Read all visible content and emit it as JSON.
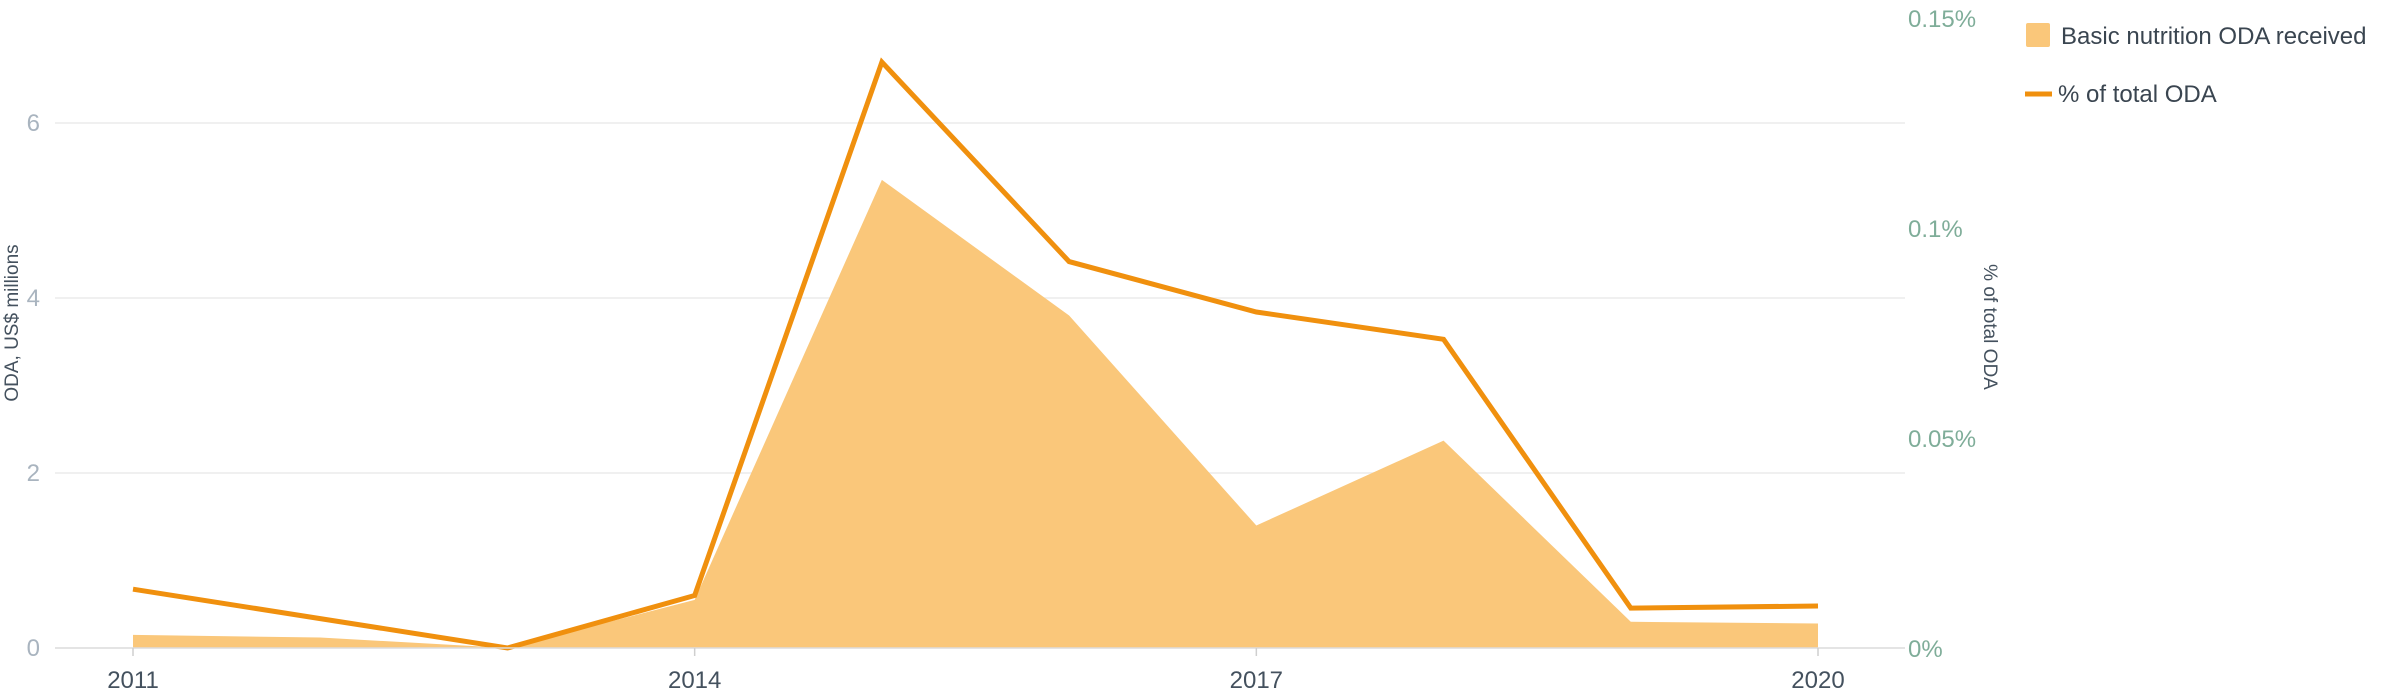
{
  "chart_data": {
    "type": "area",
    "x": [
      2011,
      2012,
      2013,
      2014,
      2015,
      2016,
      2017,
      2018,
      2019,
      2020
    ],
    "x_ticks": [
      "2011",
      "2014",
      "2017",
      "2020"
    ],
    "series": [
      {
        "name": "Basic nutrition ODA received",
        "type": "area",
        "axis": "left",
        "color": "#fac77a",
        "values": [
          0.15,
          0.12,
          0.0,
          0.55,
          5.35,
          3.8,
          1.4,
          2.37,
          0.3,
          0.28
        ]
      },
      {
        "name": "% of total ODA",
        "type": "line",
        "axis": "right",
        "color": "#f0900e",
        "values": [
          0.014,
          0.007,
          0.0,
          0.0125,
          0.1395,
          0.092,
          0.08,
          0.0735,
          0.0095,
          0.01
        ]
      }
    ],
    "y_left": {
      "label": "ODA, US$ millions",
      "ticks": [
        "0",
        "2",
        "4",
        "6"
      ],
      "tick_values": [
        0,
        2,
        4,
        6
      ],
      "range": [
        0,
        7.2
      ]
    },
    "y_right": {
      "label": "% of total ODA",
      "ticks": [
        "0%",
        "0.05%",
        "0.1%",
        "0.15%"
      ],
      "tick_values": [
        0,
        0.05,
        0.1,
        0.15
      ],
      "range": [
        0,
        0.15
      ]
    },
    "grid": true,
    "legend_position": "top-right"
  }
}
